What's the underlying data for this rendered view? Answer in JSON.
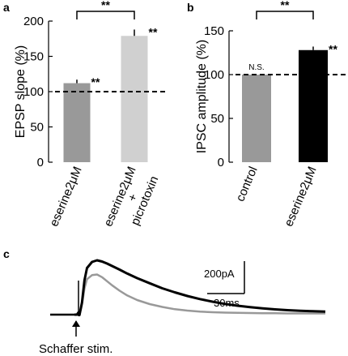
{
  "chart_data": [
    {
      "panel": "a",
      "type": "bar",
      "ylabel": "EPSP slope (%)",
      "ylim": [
        0,
        200
      ],
      "yticks": [
        0,
        50,
        100,
        150,
        200
      ],
      "reference_line": 100,
      "categories": [
        "eserine2μM",
        "eserine2μM\n+\npicrotoxin"
      ],
      "category_lines": [
        [
          "eserine2μM"
        ],
        [
          "eserine2μM",
          "+",
          "picrotoxin"
        ]
      ],
      "values": [
        112,
        179
      ],
      "errors": [
        5,
        9
      ],
      "colors": [
        "#999999",
        "#d0d0d0"
      ],
      "bar_annotations": [
        "**",
        "**"
      ],
      "comparison": {
        "between": [
          0,
          1
        ],
        "label": "**"
      }
    },
    {
      "panel": "b",
      "type": "bar",
      "ylabel": "IPSC amplitude (%)",
      "ylim": [
        0,
        150
      ],
      "yticks": [
        0,
        50,
        100,
        150
      ],
      "reference_line": 100,
      "categories": [
        "control",
        "eserine2μM"
      ],
      "category_lines": [
        [
          "control"
        ],
        [
          "eserine2μM"
        ]
      ],
      "values": [
        100,
        128
      ],
      "errors": [
        0,
        4
      ],
      "colors": [
        "#999999",
        "#000000"
      ],
      "bar_annotations": [
        "N.S.",
        "**"
      ],
      "comparison": {
        "between": [
          0,
          1
        ],
        "label": "**"
      }
    },
    {
      "panel": "c",
      "type": "line",
      "series": [
        {
          "color": "#000000",
          "x": [
            0,
            2,
            3,
            4,
            6,
            8,
            10,
            14,
            18,
            22,
            26,
            30,
            36,
            42,
            50,
            60,
            70,
            80,
            90,
            100,
            110,
            120,
            130,
            140,
            150,
            160,
            170,
            180,
            190,
            200
          ],
          "y": [
            0,
            0,
            10,
            -2,
            60,
            170,
            230,
            260,
            268,
            262,
            252,
            240,
            222,
            203,
            180,
            155,
            130,
            110,
            92,
            77,
            64,
            53,
            44,
            37,
            31,
            26,
            22,
            19,
            17,
            15
          ]
        },
        {
          "color": "#999999",
          "x": [
            0,
            2,
            3,
            4,
            6,
            8,
            10,
            14,
            18,
            22,
            26,
            30,
            36,
            42,
            50,
            60,
            70,
            80,
            90,
            100,
            110,
            120,
            130,
            140,
            150,
            160,
            170,
            180,
            190,
            200
          ],
          "y": [
            0,
            0,
            10,
            -2,
            50,
            130,
            175,
            195,
            198,
            185,
            165,
            145,
            118,
            95,
            72,
            52,
            38,
            27,
            20,
            15,
            12,
            10,
            9,
            8,
            7,
            7,
            6,
            6,
            6,
            6
          ]
        }
      ],
      "scale_bar": {
        "amplitude": "200pA",
        "time": "30ms"
      },
      "stimulus_label": "Schaffer stim."
    }
  ],
  "panels": {
    "a": "a",
    "b": "b",
    "c": "c"
  }
}
